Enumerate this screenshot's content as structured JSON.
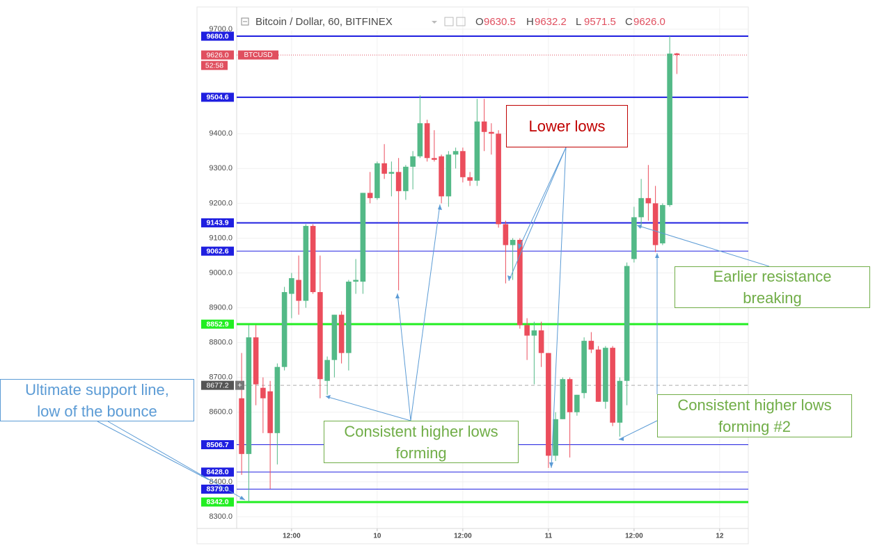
{
  "chart_data": {
    "type": "candlestick",
    "header": {
      "title": "Bitcoin / Dollar, 60, BITFINEX",
      "fields": [
        "O",
        "H",
        "L",
        "C"
      ],
      "value_labels": [
        "9630.5",
        "9632.2",
        "9571.5",
        "9626.0"
      ]
    },
    "categories": [
      null,
      null,
      null,
      null,
      null,
      null,
      null,
      "12:00",
      null,
      null,
      null,
      null,
      null,
      null,
      null,
      null,
      null,
      null,
      null,
      "10",
      null,
      null,
      null,
      null,
      null,
      null,
      null,
      null,
      null,
      null,
      null,
      "12:00",
      null,
      null,
      null,
      null,
      null,
      null,
      null,
      null,
      null,
      null,
      null,
      "11",
      null,
      null,
      null,
      null,
      null,
      null,
      null,
      null,
      null,
      null,
      null,
      "12:00",
      null,
      null,
      null,
      null,
      null,
      null,
      null,
      null,
      null,
      null,
      null,
      "12",
      null,
      null,
      null,
      null
    ],
    "open": [
      8640,
      8480,
      8815,
      8670,
      8660,
      8540,
      8730,
      8940,
      8980,
      8920,
      9135,
      8945,
      8690,
      8750,
      8880,
      8770,
      8975,
      8975,
      9230,
      9215,
      9315,
      9285,
      9290,
      9235,
      9305,
      9335,
      9430,
      9330,
      9335,
      9220,
      9340,
      9350,
      9275,
      9265,
      9435,
      9405,
      9400,
      9140,
      9080,
      9095,
      8850,
      8820,
      8835,
      8770,
      8475,
      8580,
      8695,
      8600,
      8655,
      8805,
      8780,
      8630,
      8785,
      8570,
      8690,
      9040,
      9160,
      9215,
      9200,
      9085,
      9195,
      9630.5,
      null,
      null,
      null,
      null,
      null,
      null,
      null,
      null,
      null,
      null
    ],
    "high": [
      8770,
      8850,
      8850,
      8700,
      8690,
      8740,
      8960,
      9000,
      9050,
      9140,
      9140,
      9050,
      8760,
      8880,
      8890,
      8980,
      9040,
      9230,
      9290,
      9320,
      9370,
      9320,
      9330,
      9310,
      9350,
      9510,
      9440,
      9410,
      9340,
      9350,
      9360,
      9360,
      9290,
      9500,
      9500,
      9430,
      9410,
      9150,
      9100,
      9100,
      8870,
      8860,
      8860,
      8770,
      8600,
      8700,
      8700,
      8650,
      8815,
      8830,
      8790,
      8790,
      8790,
      8700,
      9030,
      9190,
      9270,
      9310,
      9250,
      9200,
      9680,
      9632.2,
      null,
      null,
      null,
      null,
      null,
      null,
      null,
      null,
      null,
      null
    ],
    "low": [
      8420,
      8342,
      8620,
      8540,
      8380,
      8450,
      8720,
      8870,
      8880,
      8900,
      8940,
      8640,
      8650,
      8700,
      8740,
      8720,
      8940,
      8940,
      9200,
      9210,
      9270,
      9220,
      8950,
      9210,
      9240,
      9330,
      9320,
      9320,
      9200,
      9190,
      9300,
      9260,
      9250,
      9250,
      9350,
      9340,
      9130,
      8970,
      8980,
      8840,
      8750,
      8680,
      8730,
      8440,
      8460,
      8580,
      8470,
      8590,
      8640,
      8770,
      8630,
      8610,
      8560,
      8530,
      8620,
      9030,
      9130,
      9150,
      9060,
      9080,
      9190,
      9571.5,
      null,
      null,
      null,
      null,
      null,
      null,
      null,
      null,
      null,
      null
    ],
    "close": [
      8480,
      8815,
      8680,
      8640,
      8540,
      8730,
      8945,
      8985,
      8920,
      9135,
      8945,
      8695,
      8750,
      8880,
      8770,
      8975,
      8980,
      9230,
      9215,
      9315,
      9285,
      9290,
      9235,
      9305,
      9335,
      9430,
      9330,
      9325,
      9220,
      9340,
      9350,
      9275,
      9265,
      9435,
      9405,
      9400,
      9140,
      9080,
      9095,
      8850,
      8820,
      8835,
      8770,
      8475,
      8580,
      8695,
      8600,
      8650,
      8805,
      8780,
      8630,
      8785,
      8570,
      8690,
      9020,
      9160,
      9215,
      9200,
      9080,
      9195,
      9630,
      9626,
      null,
      null,
      null,
      null,
      null,
      null,
      null,
      null,
      null,
      null
    ],
    "up_color": "#53b987",
    "down_color": "#eb4d5c",
    "ylim": [
      8266,
      9760
    ],
    "yticks": [
      {
        "value": 8300,
        "label": "8300.0"
      },
      {
        "value": 8400,
        "label": "8400.0"
      },
      {
        "value": 8600,
        "label": "8600.0"
      },
      {
        "value": 8700,
        "label": "8700.0"
      },
      {
        "value": 8800,
        "label": "8800.0"
      },
      {
        "value": 8900,
        "label": "8900.0"
      },
      {
        "value": 9000,
        "label": "9000.0"
      },
      {
        "value": 9100,
        "label": "9100.0"
      },
      {
        "value": 9200,
        "label": "9200.0"
      },
      {
        "value": 9300,
        "label": "9300.0"
      },
      {
        "value": 9400,
        "label": "9400.0"
      },
      {
        "value": 9700,
        "label": "9700.0"
      }
    ],
    "grid": true,
    "levels": [
      {
        "value": 9680,
        "label": "9680.0",
        "color": "#1f1fe0",
        "width": 2
      },
      {
        "value": 9504.6,
        "label": "9504.6",
        "color": "#1f1fe0",
        "width": 2
      },
      {
        "value": 9143.9,
        "label": "9143.9",
        "color": "#1f1fe0",
        "width": 2
      },
      {
        "value": 9062.6,
        "label": "9062.6",
        "color": "#1f1fe0",
        "width": 1
      },
      {
        "value": 8852.9,
        "label": "8852.9",
        "color": "#22ee22",
        "width": 3
      },
      {
        "value": 8506.7,
        "label": "8506.7",
        "color": "#1f1fe0",
        "width": 1
      },
      {
        "value": 8428,
        "label": "8428.0",
        "color": "#1f1fe0",
        "width": 1
      },
      {
        "value": 8379,
        "label": "8379.0",
        "color": "#1f1fe0",
        "width": 1
      },
      {
        "value": 8342,
        "label": "8342.0",
        "color": "#22ee22",
        "width": 3
      }
    ],
    "last_price": {
      "value": 9626,
      "label": "9626.0",
      "symbol": "BTCUSD",
      "countdown": "52:58",
      "color": "#e04f5f"
    },
    "crosshair": 8677.2,
    "annotations": [
      {
        "text": [
          "Lower lows"
        ],
        "color": "#c00000"
      },
      {
        "text": [
          "Ultimate support line,",
          "low of the bounce"
        ],
        "color": "#5b9bd5"
      },
      {
        "text": [
          "Consistent higher lows",
          "forming"
        ],
        "color": "#70ad47"
      },
      {
        "text": [
          "Earlier resistance",
          "breaking"
        ],
        "color": "#70ad47"
      },
      {
        "text": [
          "Consistent higher lows",
          "forming #2"
        ],
        "color": "#70ad47"
      }
    ]
  }
}
